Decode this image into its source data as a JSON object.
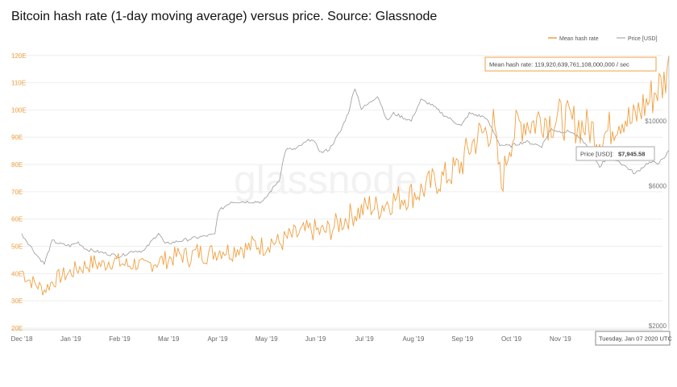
{
  "header": {
    "title": "Bitcoin hash rate (1-day moving average) versus price. Source: Glassnode"
  },
  "watermark": "glassnode",
  "colors": {
    "hash_rate": "#f0a040",
    "price": "#999999",
    "gridline": "#eeeeee"
  },
  "chart_data": {
    "type": "line",
    "legend_position": "top-right",
    "grid": true,
    "x_labels": [
      "Dec '18",
      "Jan '19",
      "Feb '19",
      "Mar '19",
      "Apr '19",
      "May '19",
      "Jun '19",
      "Jul '19",
      "Aug '19",
      "Sep '19",
      "Oct '19",
      "Nov '19",
      "Dec '19"
    ],
    "y_left": {
      "ticks": [
        "20E",
        "30E",
        "40E",
        "50E",
        "60E",
        "70E",
        "80E",
        "90E",
        "100E",
        "110E",
        "120E"
      ],
      "range": [
        20,
        122
      ]
    },
    "y_right": {
      "ticks": [
        "$2000",
        "$6000",
        "$10000"
      ],
      "scale": "log"
    },
    "series": [
      {
        "name": "Mean hash rate",
        "unit": "EH/s",
        "axis": "left",
        "points": [
          [
            "2018-12-01",
            41
          ],
          [
            "2018-12-05",
            38
          ],
          [
            "2018-12-10",
            36
          ],
          [
            "2018-12-15",
            34
          ],
          [
            "2018-12-20",
            37
          ],
          [
            "2018-12-25",
            39
          ],
          [
            "2018-12-30",
            40
          ],
          [
            "2019-01-05",
            42
          ],
          [
            "2019-01-10",
            43
          ],
          [
            "2019-01-15",
            44
          ],
          [
            "2019-01-20",
            43
          ],
          [
            "2019-01-25",
            45
          ],
          [
            "2019-01-31",
            44
          ],
          [
            "2019-02-05",
            43
          ],
          [
            "2019-02-10",
            44
          ],
          [
            "2019-02-15",
            42
          ],
          [
            "2019-02-20",
            44
          ],
          [
            "2019-02-28",
            45
          ],
          [
            "2019-03-05",
            46
          ],
          [
            "2019-03-10",
            47
          ],
          [
            "2019-03-15",
            46
          ],
          [
            "2019-03-20",
            48
          ],
          [
            "2019-03-25",
            47
          ],
          [
            "2019-03-31",
            48
          ],
          [
            "2019-04-05",
            49
          ],
          [
            "2019-04-10",
            48
          ],
          [
            "2019-04-15",
            50
          ],
          [
            "2019-04-20",
            49
          ],
          [
            "2019-04-25",
            51
          ],
          [
            "2019-04-30",
            50
          ],
          [
            "2019-05-05",
            52
          ],
          [
            "2019-05-10",
            51
          ],
          [
            "2019-05-15",
            53
          ],
          [
            "2019-05-20",
            54
          ],
          [
            "2019-05-25",
            55
          ],
          [
            "2019-05-31",
            56
          ],
          [
            "2019-06-05",
            55
          ],
          [
            "2019-06-10",
            56
          ],
          [
            "2019-06-15",
            58
          ],
          [
            "2019-06-20",
            60
          ],
          [
            "2019-06-25",
            62
          ],
          [
            "2019-06-30",
            63
          ],
          [
            "2019-07-05",
            65
          ],
          [
            "2019-07-10",
            64
          ],
          [
            "2019-07-15",
            66
          ],
          [
            "2019-07-20",
            67
          ],
          [
            "2019-07-25",
            68
          ],
          [
            "2019-07-31",
            69
          ],
          [
            "2019-08-05",
            70
          ],
          [
            "2019-08-10",
            72
          ],
          [
            "2019-08-15",
            74
          ],
          [
            "2019-08-20",
            75
          ],
          [
            "2019-08-25",
            77
          ],
          [
            "2019-08-31",
            80
          ],
          [
            "2019-09-05",
            86
          ],
          [
            "2019-09-10",
            90
          ],
          [
            "2019-09-15",
            92
          ],
          [
            "2019-09-20",
            94
          ],
          [
            "2019-09-25",
            72
          ],
          [
            "2019-09-30",
            88
          ],
          [
            "2019-10-05",
            94
          ],
          [
            "2019-10-10",
            96
          ],
          [
            "2019-10-15",
            95
          ],
          [
            "2019-10-20",
            98
          ],
          [
            "2019-10-25",
            96
          ],
          [
            "2019-10-31",
            97
          ],
          [
            "2019-11-05",
            96
          ],
          [
            "2019-11-10",
            95
          ],
          [
            "2019-11-15",
            94
          ],
          [
            "2019-11-20",
            93
          ],
          [
            "2019-11-25",
            90
          ],
          [
            "2019-11-30",
            92
          ],
          [
            "2019-12-05",
            96
          ],
          [
            "2019-12-10",
            98
          ],
          [
            "2019-12-15",
            95
          ],
          [
            "2019-12-20",
            100
          ],
          [
            "2019-12-25",
            103
          ],
          [
            "2019-12-31",
            108
          ],
          [
            "2020-01-04",
            110
          ],
          [
            "2020-01-07",
            119.92
          ]
        ]
      },
      {
        "name": "Price [USD]",
        "unit": "USD",
        "axis": "right",
        "points": [
          [
            "2018-12-01",
            4100
          ],
          [
            "2018-12-10",
            3500
          ],
          [
            "2018-12-15",
            3250
          ],
          [
            "2018-12-20",
            3900
          ],
          [
            "2018-12-25",
            3800
          ],
          [
            "2018-12-31",
            3750
          ],
          [
            "2019-01-05",
            3850
          ],
          [
            "2019-01-10",
            3650
          ],
          [
            "2019-01-20",
            3550
          ],
          [
            "2019-01-31",
            3450
          ],
          [
            "2019-02-08",
            3600
          ],
          [
            "2019-02-15",
            3600
          ],
          [
            "2019-02-24",
            4150
          ],
          [
            "2019-02-28",
            3800
          ],
          [
            "2019-03-10",
            3900
          ],
          [
            "2019-03-20",
            4000
          ],
          [
            "2019-03-31",
            4100
          ],
          [
            "2019-04-02",
            4900
          ],
          [
            "2019-04-10",
            5300
          ],
          [
            "2019-04-20",
            5300
          ],
          [
            "2019-04-30",
            5300
          ],
          [
            "2019-05-10",
            6300
          ],
          [
            "2019-05-14",
            8000
          ],
          [
            "2019-05-20",
            8000
          ],
          [
            "2019-05-30",
            8700
          ],
          [
            "2019-06-05",
            7800
          ],
          [
            "2019-06-10",
            8000
          ],
          [
            "2019-06-17",
            9200
          ],
          [
            "2019-06-22",
            10700
          ],
          [
            "2019-06-26",
            13000
          ],
          [
            "2019-06-30",
            11000
          ],
          [
            "2019-07-05",
            11500
          ],
          [
            "2019-07-10",
            12200
          ],
          [
            "2019-07-16",
            10000
          ],
          [
            "2019-07-20",
            10600
          ],
          [
            "2019-07-31",
            10000
          ],
          [
            "2019-08-06",
            11800
          ],
          [
            "2019-08-12",
            11400
          ],
          [
            "2019-08-20",
            10500
          ],
          [
            "2019-08-31",
            9600
          ],
          [
            "2019-09-05",
            10600
          ],
          [
            "2019-09-15",
            10300
          ],
          [
            "2019-09-24",
            8300
          ],
          [
            "2019-09-30",
            8200
          ],
          [
            "2019-10-10",
            8500
          ],
          [
            "2019-10-20",
            8200
          ],
          [
            "2019-10-26",
            9400
          ],
          [
            "2019-10-31",
            9200
          ],
          [
            "2019-11-07",
            9200
          ],
          [
            "2019-11-15",
            8500
          ],
          [
            "2019-11-25",
            7000
          ],
          [
            "2019-11-30",
            7500
          ],
          [
            "2019-12-05",
            7400
          ],
          [
            "2019-12-17",
            6600
          ],
          [
            "2019-12-25",
            7200
          ],
          [
            "2019-12-31",
            7200
          ],
          [
            "2020-01-04",
            7400
          ],
          [
            "2020-01-07",
            7945.58
          ]
        ]
      }
    ],
    "tooltips": {
      "hash_rate": "Mean hash rate: 119,920,639,761,108,000,000 / sec",
      "price_label": "Price [USD]:",
      "price_value": "$7,945.58",
      "date": "Tuesday, Jan 07 2020 UTC"
    }
  }
}
